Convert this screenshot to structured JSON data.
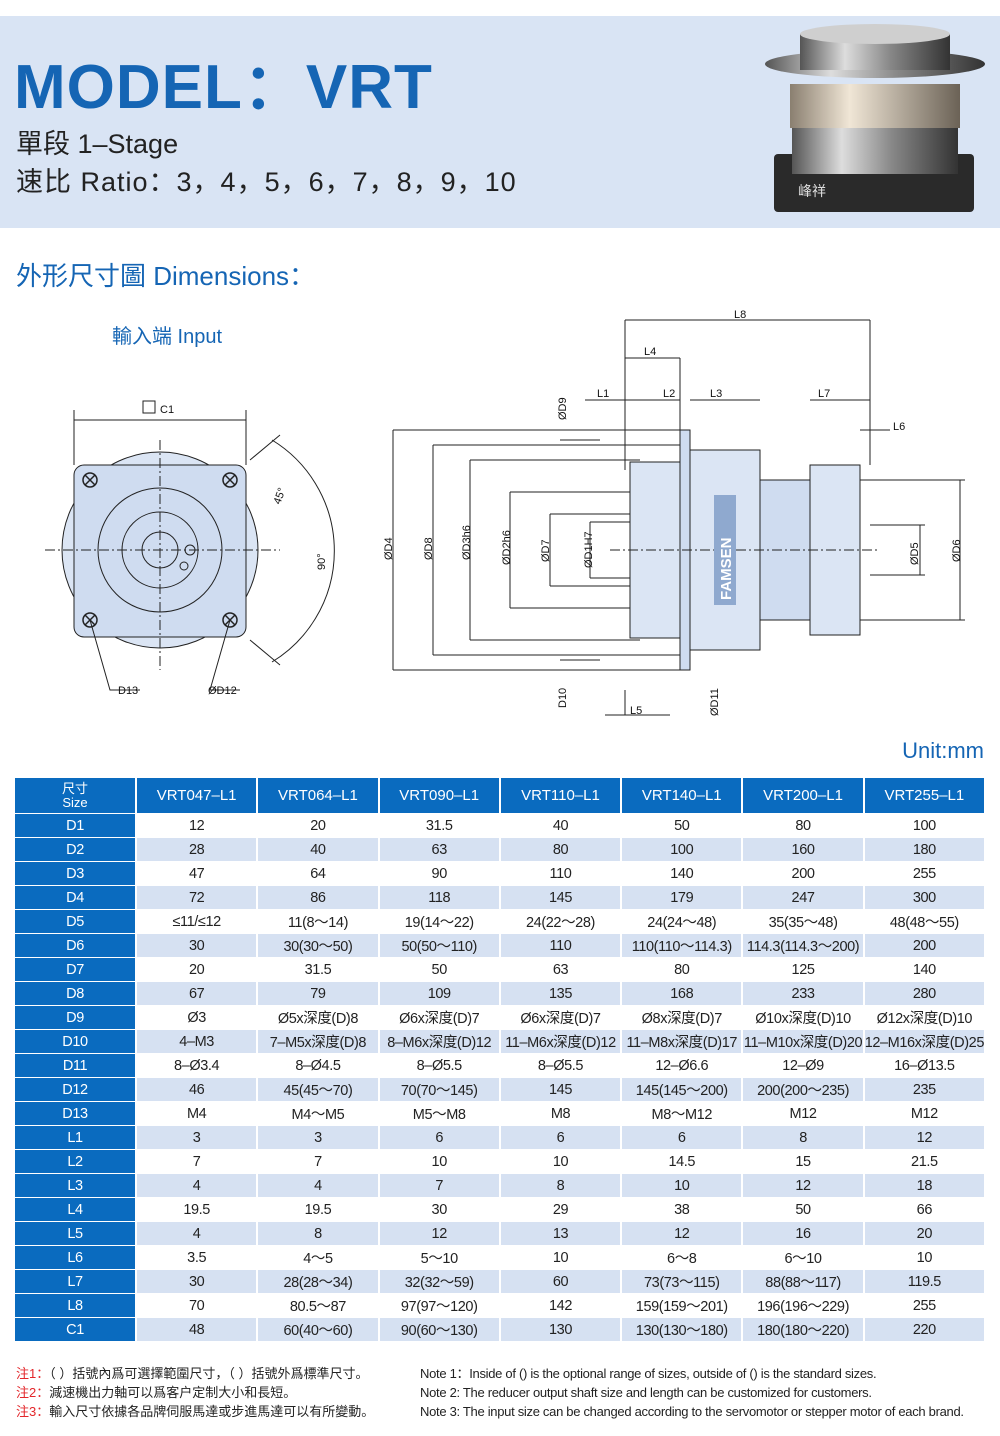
{
  "header": {
    "title": "MODEL：VRT",
    "stage": "單段  1–Stage",
    "ratio": "速比 Ratio：3，4，5，6，7，8，9，10",
    "logo_text": "峰祥"
  },
  "section_title": "外形尺寸圖 Dimensions：",
  "input_label": "輸入端 Input",
  "drawing_labels": {
    "c1": "C1",
    "angle45": "45°",
    "angle90": "90°",
    "d13": "D13",
    "d12": "ØD12",
    "d4": "ØD4",
    "d8": "ØD8",
    "d3": "ØD3h6",
    "d2": "ØD2h6",
    "d7": "ØD7",
    "d1": "ØD1H7",
    "d9": "ØD9",
    "d10": "D10",
    "d11": "ØD11",
    "l5": "L5",
    "l1": "L1",
    "l2": "L2",
    "l3": "L3",
    "l4": "L4",
    "l8": "L8",
    "l7": "L7",
    "l6": "L6",
    "d5": "ØD5",
    "d6": "ØD6",
    "brand": "FAMSEN"
  },
  "unit": "Unit:mm",
  "table": {
    "size_header_cn": "尺寸",
    "size_header_en": "Size",
    "columns": [
      "VRT047–L1",
      "VRT064–L1",
      "VRT090–L1",
      "VRT110–L1",
      "VRT140–L1",
      "VRT200–L1",
      "VRT255–L1"
    ],
    "rows": [
      {
        "label": "D1",
        "values": [
          "12",
          "20",
          "31.5",
          "40",
          "50",
          "80",
          "100"
        ]
      },
      {
        "label": "D2",
        "values": [
          "28",
          "40",
          "63",
          "80",
          "100",
          "160",
          "180"
        ]
      },
      {
        "label": "D3",
        "values": [
          "47",
          "64",
          "90",
          "110",
          "140",
          "200",
          "255"
        ]
      },
      {
        "label": "D4",
        "values": [
          "72",
          "86",
          "118",
          "145",
          "179",
          "247",
          "300"
        ]
      },
      {
        "label": "D5",
        "values": [
          "≤11/≤12",
          "11(8～14)",
          "19(14～22)",
          "24(22～28)",
          "24(24～48)",
          "35(35～48)",
          "48(48～55)"
        ]
      },
      {
        "label": "D6",
        "values": [
          "30",
          "30(30～50)",
          "50(50～110)",
          "110",
          "110(110～114.3)",
          "114.3(114.3～200)",
          "200"
        ]
      },
      {
        "label": "D7",
        "values": [
          "20",
          "31.5",
          "50",
          "63",
          "80",
          "125",
          "140"
        ]
      },
      {
        "label": "D8",
        "values": [
          "67",
          "79",
          "109",
          "135",
          "168",
          "233",
          "280"
        ]
      },
      {
        "label": "D9",
        "values": [
          "Ø3",
          "Ø5x深度(D)8",
          "Ø6x深度(D)7",
          "Ø6x深度(D)7",
          "Ø8x深度(D)7",
          "Ø10x深度(D)10",
          "Ø12x深度(D)10"
        ]
      },
      {
        "label": "D10",
        "values": [
          "4–M3",
          "7–M5x深度(D)8",
          "8–M6x深度(D)12",
          "11–M6x深度(D)12",
          "11–M8x深度(D)17",
          "11–M10x深度(D)20",
          "12–M16x深度(D)25"
        ]
      },
      {
        "label": "D11",
        "values": [
          "8–Ø3.4",
          "8–Ø4.5",
          "8–Ø5.5",
          "8–Ø5.5",
          "12–Ø6.6",
          "12–Ø9",
          "16–Ø13.5"
        ]
      },
      {
        "label": "D12",
        "values": [
          "46",
          "45(45～70)",
          "70(70～145)",
          "145",
          "145(145～200)",
          "200(200～235)",
          "235"
        ]
      },
      {
        "label": "D13",
        "values": [
          "M4",
          "M4～M5",
          "M5～M8",
          "M8",
          "M8～M12",
          "M12",
          "M12"
        ]
      },
      {
        "label": "L1",
        "values": [
          "3",
          "3",
          "6",
          "6",
          "6",
          "8",
          "12"
        ]
      },
      {
        "label": "L2",
        "values": [
          "7",
          "7",
          "10",
          "10",
          "14.5",
          "15",
          "21.5"
        ]
      },
      {
        "label": "L3",
        "values": [
          "4",
          "4",
          "7",
          "8",
          "10",
          "12",
          "18"
        ]
      },
      {
        "label": "L4",
        "values": [
          "19.5",
          "19.5",
          "30",
          "29",
          "38",
          "50",
          "66"
        ]
      },
      {
        "label": "L5",
        "values": [
          "4",
          "8",
          "12",
          "13",
          "12",
          "16",
          "20"
        ]
      },
      {
        "label": "L6",
        "values": [
          "3.5",
          "4～5",
          "5～10",
          "10",
          "6～8",
          "6～10",
          "10"
        ]
      },
      {
        "label": "L7",
        "values": [
          "30",
          "28(28～34)",
          "32(32～59)",
          "60",
          "73(73～115)",
          "88(88～117)",
          "119.5"
        ]
      },
      {
        "label": "L8",
        "values": [
          "70",
          "80.5～87",
          "97(97～120)",
          "142",
          "159(159～201)",
          "196(196～229)",
          "255"
        ]
      },
      {
        "label": "C1",
        "values": [
          "48",
          "60(40～60)",
          "90(60～130)",
          "130",
          "130(130～180)",
          "180(180～220)",
          "220"
        ]
      }
    ]
  },
  "notes": [
    {
      "tag": "注1：",
      "cn": "（ ）括號內爲可選擇範圍尺寸，（ ）括號外爲標準尺寸。",
      "en": "Note 1：Inside of () is the optional range of sizes, outside of () is the standard sizes."
    },
    {
      "tag": "注2：",
      "cn": "減速機出力軸可以爲客户定制大小和長短。",
      "en": "Note 2: The reducer output shaft size and length can be customized for customers."
    },
    {
      "tag": "注3：",
      "cn": "輸入尺寸依據各品牌伺服馬達或步進馬達可以有所變動。",
      "en": "Note 3: The input size can be changed according to the servomotor or stepper motor of each brand."
    }
  ],
  "colors": {
    "brand_blue": "#1565b4",
    "table_header": "#0a6bbf",
    "row_alt": "#d6e1f2",
    "header_band": "#d9e4f4",
    "note_red": "#e3262a"
  }
}
